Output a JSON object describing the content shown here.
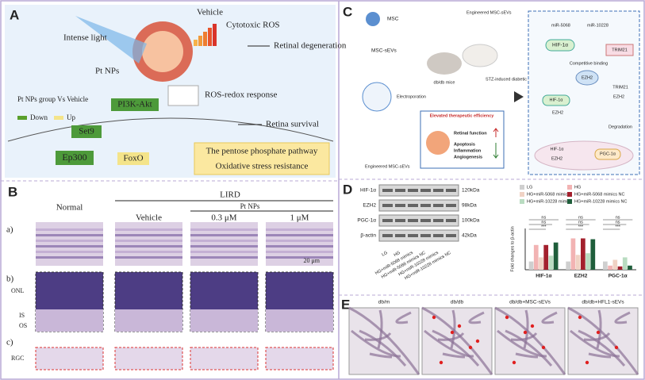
{
  "panel_a": {
    "label": "A",
    "intense_light": "Intense light",
    "vehicle": "Vehicle",
    "cytotoxic_ros": "Cytotoxic ROS",
    "retinal_degeneration": "Retinal degeneration",
    "pt_nps": "Pt NPs",
    "comparison": "Pt NPs group Vs Vehicle",
    "down": "Down",
    "up": "Up",
    "pi3k": "PI3K-Akt",
    "ros_redox": "ROS-redox response",
    "set9": "Set9",
    "retina_survival": "Retina survival",
    "ep300": "Ep300",
    "foxo": "FoxO",
    "pentose": "The pentose phosphate pathway",
    "oxidative": "Oxidative stress resistance"
  },
  "panel_b": {
    "label": "B",
    "lird": "LIRD",
    "pt_nps": "Pt NPs",
    "columns": [
      "Normal",
      "Vehicle",
      "0.3 μM",
      "1 μM"
    ],
    "rows": [
      "a)",
      "b)",
      "c)"
    ],
    "scale_bar": "20 μm",
    "layers": [
      "ONL",
      "IS",
      "OS",
      "RGC"
    ]
  },
  "panel_c": {
    "label": "C",
    "msc": "MSC",
    "msc_sevs": "MSC-sEVs",
    "electroporation": "Electroporation",
    "engineered_1": "Engineered MSC-sEVs",
    "engineered_2": "Engineered MSC-sEVs",
    "engineered_3": "Engineered MSC-sEVs",
    "dbdb_mice": "db/db mice",
    "stz_rats": "STZ-induced diabetic rats",
    "efficiency": "Elevated therapeutic efficiency",
    "retinal_function": "Retinal function",
    "apoptosis": "Apoptosis",
    "inflammation": "Inflammation",
    "angiogenesis": "Angiogenesis",
    "mir5068": "miR-5068",
    "mir10228": "miR-10228",
    "hif_1": "HIF-1α",
    "hif_2": "HIF-1α",
    "hif_3": "HIF-1α",
    "trim21_1": "TRIM21",
    "trim21_2": "TRIM21",
    "competitive": "Competitive binding",
    "ezh2_1": "EZH2",
    "ezh2_2": "EZH2",
    "ezh2_3": "EZH2",
    "ezh2_4": "EZH2",
    "degradation": "Degradation",
    "pgc": "PGC-1α"
  },
  "panel_d": {
    "label": "D",
    "blot_rows": [
      "HIF-1α",
      "EZH2",
      "PGC-1α",
      "β-actin"
    ],
    "blot_sizes": [
      "120kDa",
      "98kDa",
      "100kDa",
      "42kDa"
    ],
    "lanes": [
      "LG",
      "HG",
      "HG+miR-5068 mimics",
      "HG+miR-5068 mimics NC",
      "HG+miR-10228 mimics",
      "HG+miR-10228 mimics NC"
    ],
    "chart": {
      "type": "bar",
      "y_label": "Fold changes to β-actin",
      "categories": [
        "HIF-1α",
        "EZH2",
        "PGC-1α"
      ],
      "ylim": [
        0,
        5
      ],
      "series": [
        {
          "name": "LG",
          "color": "#cfcfcf",
          "values": [
            1.0,
            1.0,
            1.0
          ]
        },
        {
          "name": "HG",
          "color": "#f2b3b3",
          "values": [
            3.0,
            3.8,
            0.5
          ]
        },
        {
          "name": "HG+miR-5068 mimics",
          "color": "#f0d2c4",
          "values": [
            1.5,
            1.8,
            1.2
          ]
        },
        {
          "name": "HG+miR-5068 mimics NC",
          "color": "#a3202d",
          "values": [
            3.0,
            3.8,
            0.4
          ]
        },
        {
          "name": "HG+miR-10228 mimics",
          "color": "#b9dcc1",
          "values": [
            1.7,
            2.0,
            1.5
          ]
        },
        {
          "name": "HG+miR-10228 mimics NC",
          "color": "#1f5e3b",
          "values": [
            3.3,
            3.7,
            0.5
          ]
        }
      ],
      "annotations": [
        "ns",
        "ns",
        "***",
        "ns",
        "ns",
        "***",
        "ns",
        "ns",
        "***"
      ]
    }
  },
  "panel_e": {
    "label": "E",
    "columns": [
      "db/m",
      "db/db",
      "db/db+MSC-sEVs",
      "db/db+HFL1-sEVs"
    ]
  }
}
